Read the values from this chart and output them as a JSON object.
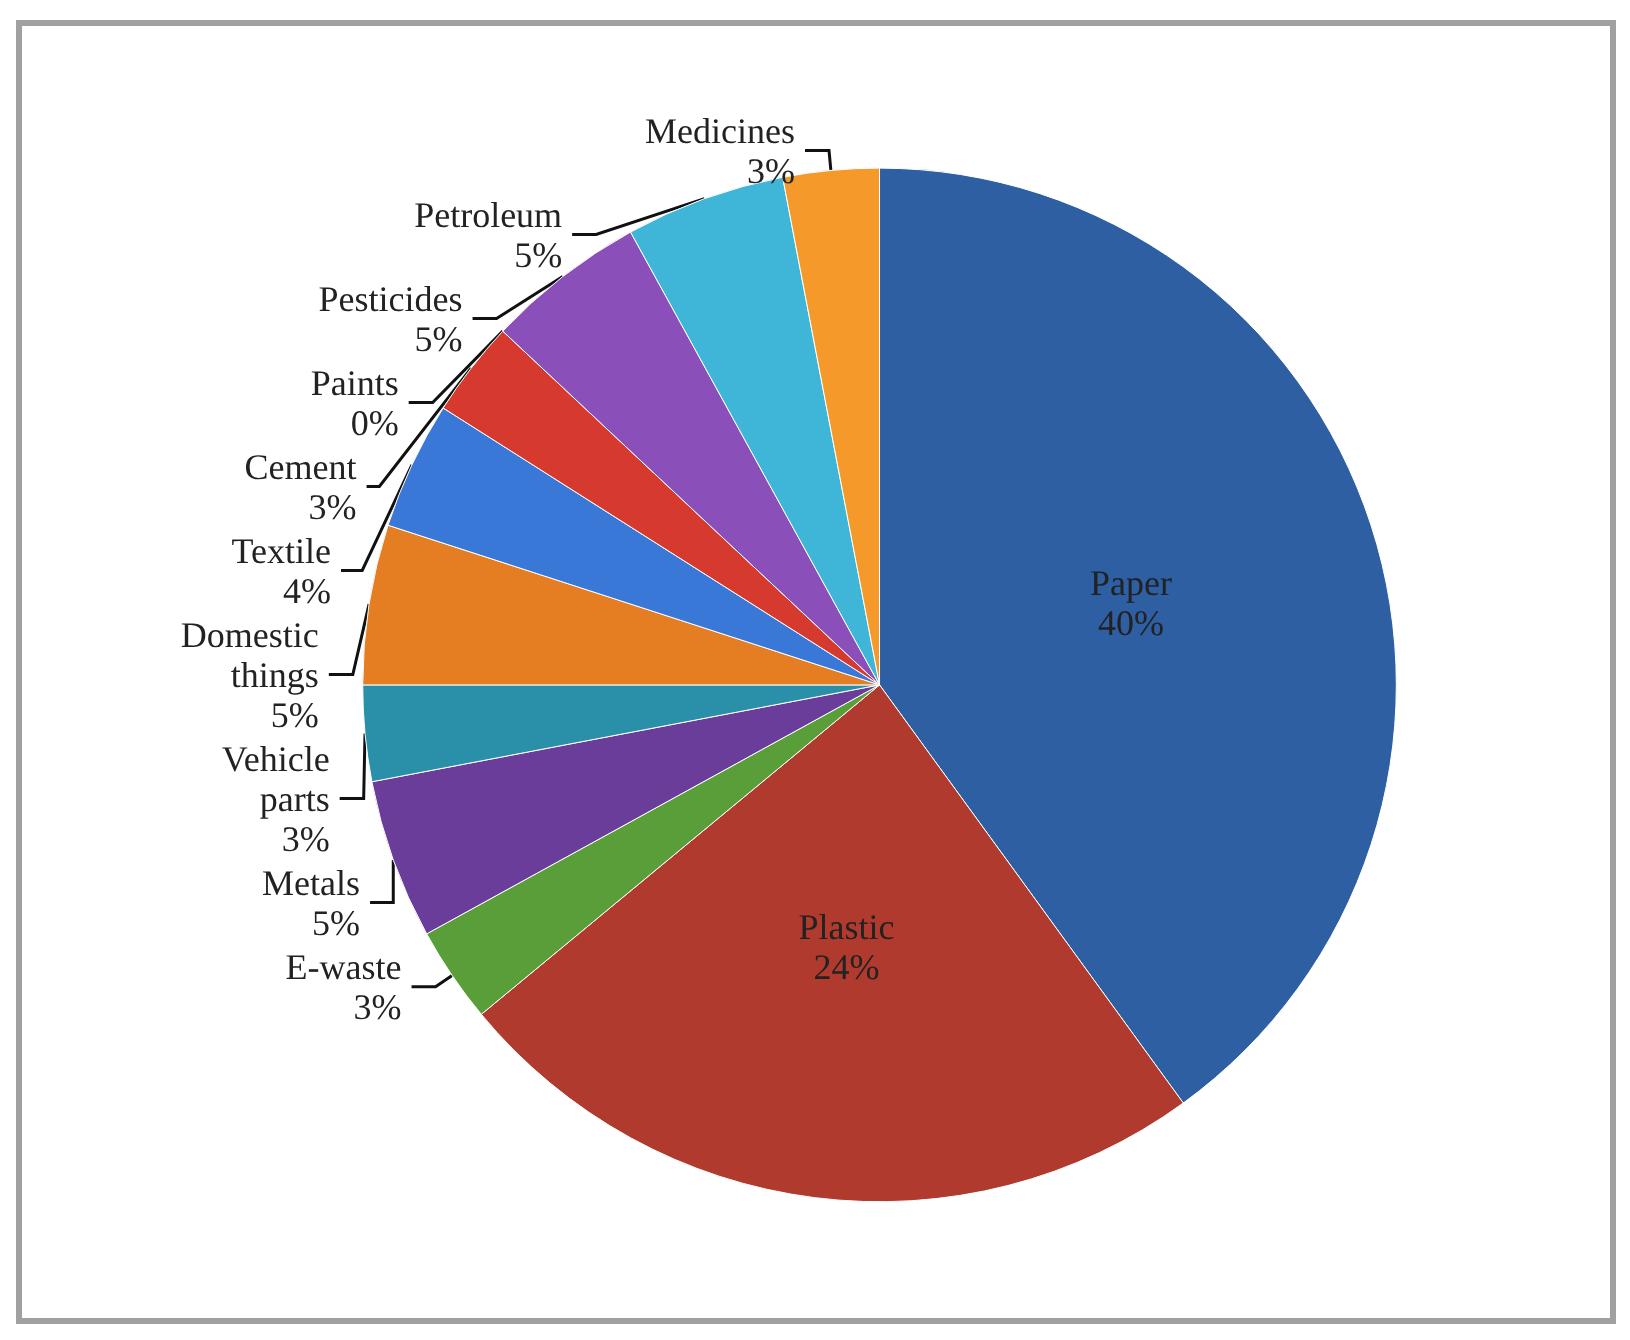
{
  "chart_data": {
    "type": "pie",
    "categories": [
      "Paper",
      "Plastic",
      "E-waste",
      "Metals",
      "Vehicle parts",
      "Domestic things",
      "Textile",
      "Cement",
      "Paints",
      "Pesticides",
      "Petroleum",
      "Medicines"
    ],
    "values": [
      40,
      24,
      3,
      5,
      3,
      5,
      4,
      3,
      0,
      5,
      5,
      3
    ],
    "value_labels": [
      "40%",
      "24%",
      "3%",
      "5%",
      "3%",
      "5%",
      "4%",
      "3%",
      "0%",
      "5%",
      "5%",
      "3%"
    ],
    "colors": [
      "#2e5fa3",
      "#b03a2e",
      "#5a9e3a",
      "#6a3d9a",
      "#2a8fa8",
      "#e57d22",
      "#3a78d8",
      "#d63a2f",
      "#e8c8a0",
      "#8a4fb8",
      "#3fb6d8",
      "#f59a2a"
    ]
  }
}
